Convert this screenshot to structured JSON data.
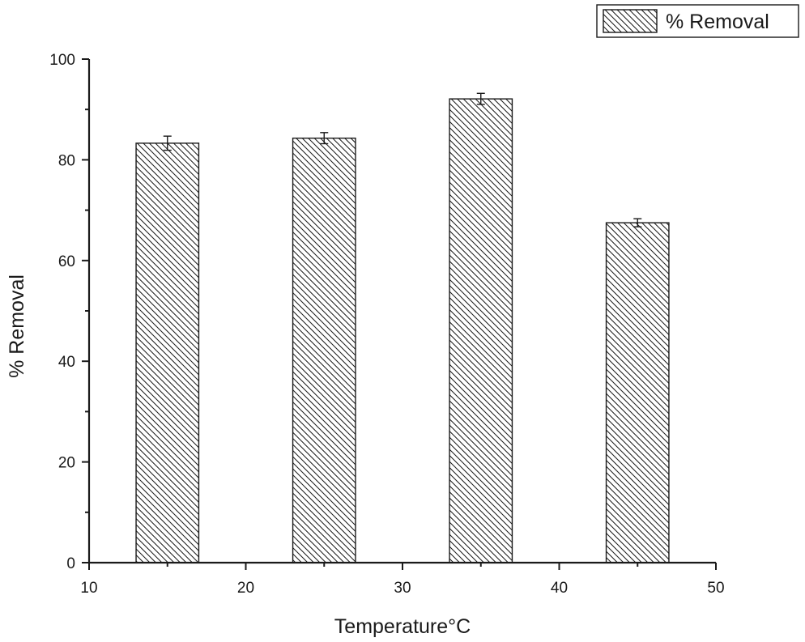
{
  "chart_data": {
    "type": "bar",
    "title": "",
    "xlabel": "Temperature°C",
    "ylabel": "% Removal",
    "x": [
      15,
      25,
      35,
      45
    ],
    "series": [
      {
        "name": "% Removal",
        "values": [
          83.3,
          84.3,
          92.1,
          67.5
        ],
        "errors": [
          1.4,
          1.1,
          1.1,
          0.8
        ],
        "pattern": "diagonal-hatch"
      }
    ],
    "bar_width": 4,
    "xlim": [
      10,
      50
    ],
    "ylim": [
      0,
      100
    ],
    "xticks": [
      10,
      20,
      30,
      40,
      50
    ],
    "yticks": [
      0,
      20,
      40,
      60,
      80,
      100
    ],
    "grid": false,
    "legend_position": "top-right",
    "colors": {
      "axis": "#1a1a1a",
      "bar_fill": "#ffffff",
      "hatch": "#1a1a1a"
    }
  }
}
